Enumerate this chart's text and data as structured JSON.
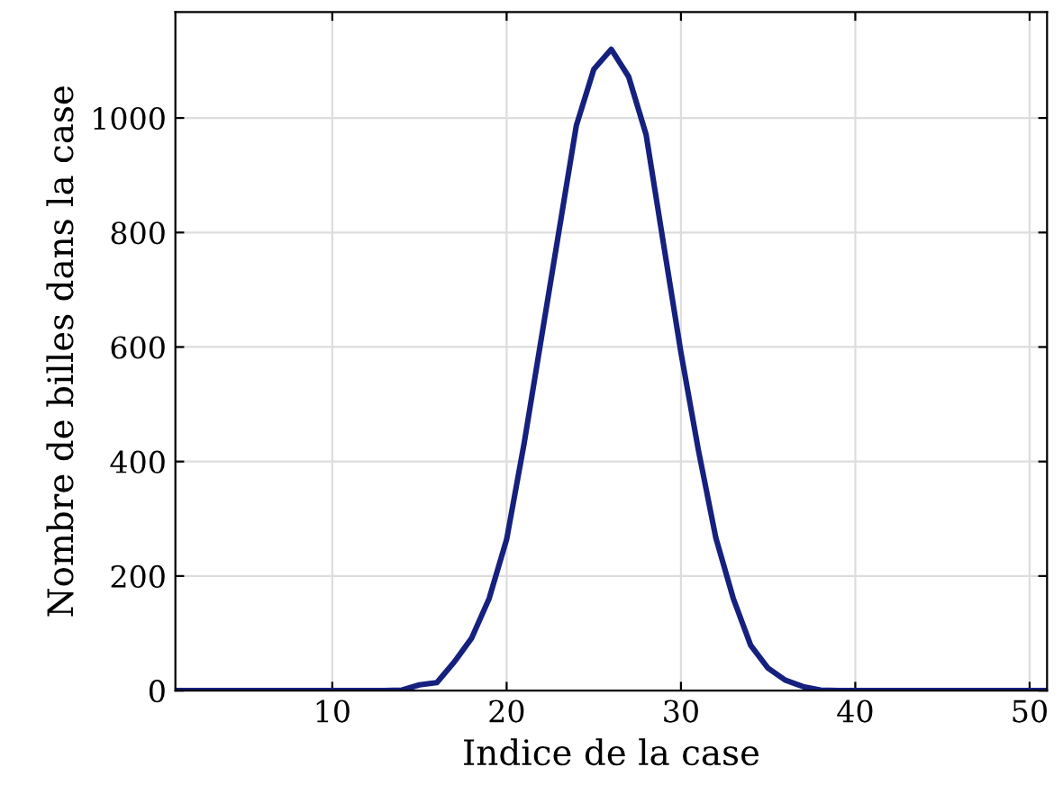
{
  "chart_data": {
    "type": "line",
    "xlabel": "Indice de la case",
    "ylabel": "Nombre de billes dans la case",
    "x": [
      1,
      2,
      3,
      4,
      5,
      6,
      7,
      8,
      9,
      10,
      11,
      12,
      13,
      14,
      15,
      16,
      17,
      18,
      19,
      20,
      21,
      22,
      23,
      24,
      25,
      26,
      27,
      28,
      29,
      30,
      31,
      32,
      33,
      34,
      35,
      36,
      37,
      38,
      39,
      40,
      41,
      42,
      43,
      44,
      45,
      46,
      47,
      48,
      49,
      50,
      51
    ],
    "series": [
      {
        "color": "#16207e",
        "values": [
          0,
          0,
          0,
          0,
          0,
          0,
          0,
          0,
          0,
          0,
          0,
          0,
          0,
          1,
          10,
          14,
          50,
          92,
          161,
          264,
          431,
          617,
          802,
          987,
          1085,
          1120,
          1072,
          971,
          780,
          590,
          420,
          267,
          161,
          79,
          39,
          18,
          7,
          1,
          0,
          0,
          0,
          0,
          0,
          0,
          0,
          0,
          0,
          0,
          0,
          0,
          0
        ]
      }
    ],
    "xlim": [
      1,
      51
    ],
    "ylim": [
      0,
      1185
    ],
    "xticks": [
      10,
      20,
      30,
      40,
      50
    ],
    "yticks": [
      0,
      200,
      400,
      600,
      800,
      1000
    ],
    "grid": true,
    "marker": "none",
    "line_style": "solid"
  }
}
